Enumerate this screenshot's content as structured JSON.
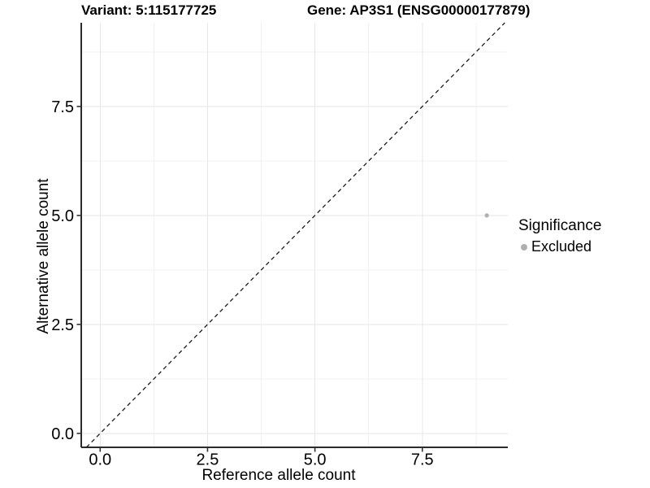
{
  "header": {
    "variant_title": "Variant: 5:115177725",
    "gene_title": "Gene: AP3S1 (ENSG00000177879)"
  },
  "chart_data": {
    "type": "scatter",
    "xlabel": "Reference allele count",
    "ylabel": "Alternative allele count",
    "x_ticks": [
      0,
      2.5,
      5,
      7.5
    ],
    "y_ticks": [
      0,
      2.5,
      5,
      7.5
    ],
    "x_minor_ticks": [
      1.25,
      3.75,
      6.25,
      8.75
    ],
    "y_minor_ticks": [
      1.25,
      3.75,
      6.25,
      8.75
    ],
    "tick_decimals": 1,
    "xlim": [
      -0.44,
      9.49
    ],
    "ylim": [
      -0.32,
      9.42
    ],
    "grid": "major+minor",
    "legend_position": "right",
    "reference_line": {
      "kind": "identity y=x",
      "style": "dashed",
      "color": "#1a1a1a"
    },
    "series": [
      {
        "name": "Excluded",
        "color": "#b0b0b0",
        "points": [
          {
            "x": 9,
            "y": 5
          }
        ]
      }
    ]
  },
  "legend": {
    "title": "Significance",
    "items": [
      {
        "label": "Excluded",
        "color": "#b0b0b0"
      }
    ]
  },
  "colors": {
    "background": "#ffffff",
    "axis_line": "#2b2b2b",
    "tick_mark": "#333333",
    "major_grid": "#e6e6e6",
    "minor_grid": "#f1f1f1",
    "text": "#000000"
  }
}
